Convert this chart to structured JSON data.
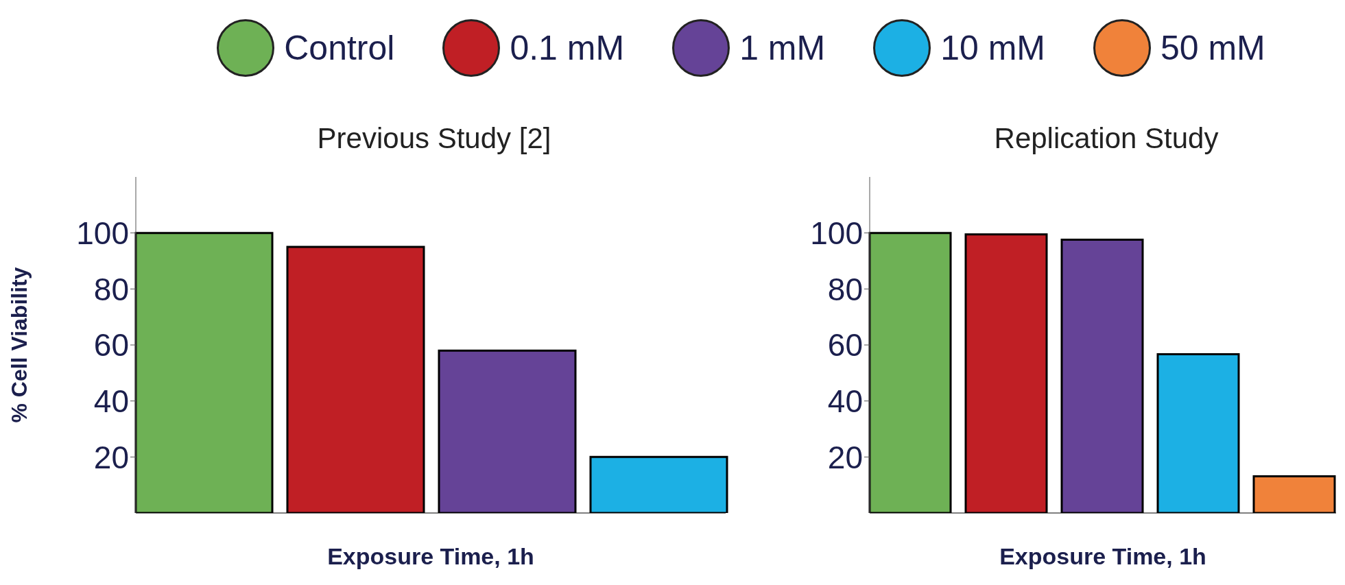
{
  "chart_data": [
    {
      "type": "bar",
      "title": "Previous Study [2]",
      "ylabel": "% Cell Viability",
      "xlabel": "Exposure Time, 1h",
      "categories": [
        null
      ],
      "ylim": [
        0,
        120
      ],
      "yticks": [
        20,
        40,
        60,
        80,
        100
      ],
      "grid": false,
      "legend": false,
      "series": [
        {
          "color": "#6eb155",
          "values": [
            100
          ]
        },
        {
          "color": "#c01f25",
          "values": [
            95
          ]
        },
        {
          "color": "#654397",
          "values": [
            58
          ]
        },
        {
          "color": "#1cb0e4",
          "values": [
            20
          ]
        }
      ]
    },
    {
      "type": "bar",
      "title": "Replication Study",
      "xlabel": "Exposure Time, 1h",
      "categories": [
        null
      ],
      "ylim": [
        0,
        120
      ],
      "yticks": [
        20,
        40,
        60,
        80,
        100
      ],
      "grid": false,
      "legend": "top",
      "series": [
        {
          "name": "Control",
          "color": "#6eb155",
          "values": [
            100
          ]
        },
        {
          "name": "0.1 mM",
          "color": "#c01f25",
          "values": [
            99.5
          ]
        },
        {
          "name": "1 mM",
          "color": "#654397",
          "values": [
            97.6
          ]
        },
        {
          "name": "10 mM",
          "color": "#1cb0e4",
          "values": [
            56.7
          ]
        },
        {
          "name": "50 mM",
          "color": "#f0823a",
          "values": [
            13.1
          ]
        }
      ]
    }
  ]
}
